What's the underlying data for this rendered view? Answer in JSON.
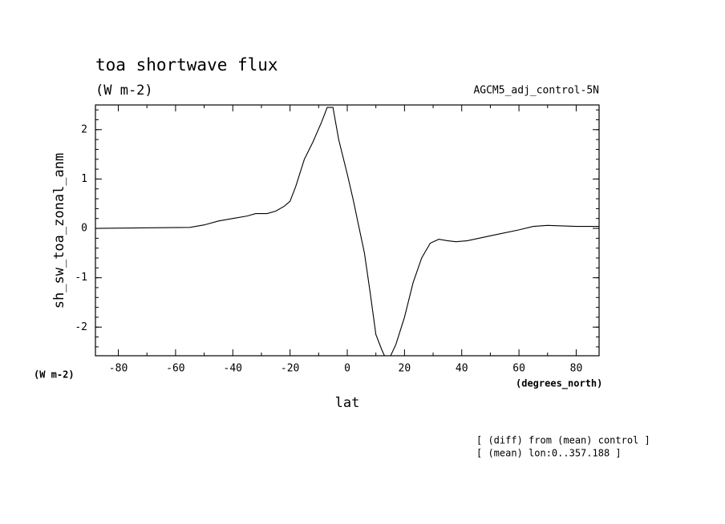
{
  "chart_data": {
    "type": "line",
    "title": "toa shortwave flux",
    "subtitle": "(W m-2)",
    "dataset_label": "AGCM5_adj_control-5N",
    "y_label": "sh_sw_toa_zonal_anm",
    "y_units": "(W m-2)",
    "x_units": "(degrees_north)",
    "x_label": "lat",
    "notes": [
      "[ (diff) from (mean) control ]",
      "[ (mean) lon:0..357.188 ]"
    ],
    "x": [
      -88,
      -55,
      -50,
      -45,
      -40,
      -35,
      -32,
      -28,
      -25,
      -22,
      -20,
      -18,
      -15,
      -12,
      -9,
      -7,
      -5,
      -3,
      0,
      2,
      4,
      6,
      8,
      10,
      12,
      13,
      15,
      17,
      20,
      23,
      26,
      29,
      32,
      35,
      38,
      42,
      50,
      60,
      65,
      70,
      75,
      80,
      88
    ],
    "series": [
      {
        "color": "#000000",
        "values": [
          0.0,
          0.02,
          0.07,
          0.15,
          0.2,
          0.25,
          0.3,
          0.3,
          0.35,
          0.45,
          0.55,
          0.85,
          1.4,
          1.75,
          2.15,
          2.45,
          2.45,
          1.8,
          1.1,
          0.6,
          0.05,
          -0.5,
          -1.3,
          -2.15,
          -2.45,
          -2.58,
          -2.6,
          -2.35,
          -1.8,
          -1.1,
          -0.6,
          -0.3,
          -0.22,
          -0.25,
          -0.27,
          -0.25,
          -0.15,
          -0.03,
          0.04,
          0.06,
          0.05,
          0.04,
          0.04
        ]
      }
    ],
    "xlim": [
      -88,
      88
    ],
    "xticks": [
      -80,
      -60,
      -40,
      -20,
      0,
      20,
      40,
      60,
      80
    ],
    "ylim": [
      -2.58,
      2.5
    ],
    "yticks": [
      -2,
      -1,
      0,
      1,
      2
    ]
  }
}
